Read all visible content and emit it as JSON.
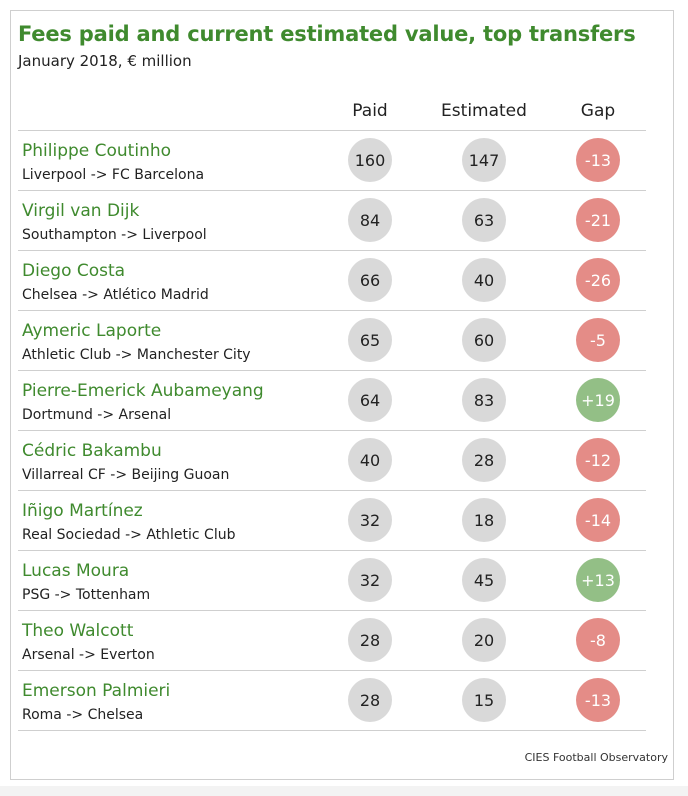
{
  "title": "Fees paid and current estimated value, top transfers",
  "subtitle": "January 2018, € million",
  "source": "CIES Football Observatory",
  "colors": {
    "title": "#3f8a2e",
    "neutral_bubble": "#d9d9d9",
    "negative_gap": "#e48c87",
    "positive_gap": "#93bf86"
  },
  "chart_data": {
    "type": "table",
    "title": "Fees paid and current estimated value, top transfers",
    "subtitle": "January 2018, € million",
    "columns": [
      "Paid",
      "Estimated",
      "Gap"
    ],
    "rows": [
      {
        "player": "Philippe Coutinho",
        "route": "Liverpool -> FC Barcelona",
        "paid": 160,
        "estimated": 147,
        "gap": "-13"
      },
      {
        "player": "Virgil van Dijk",
        "route": "Southampton -> Liverpool",
        "paid": 84,
        "estimated": 63,
        "gap": "-21"
      },
      {
        "player": "Diego Costa",
        "route": "Chelsea -> Atlético Madrid",
        "paid": 66,
        "estimated": 40,
        "gap": "-26"
      },
      {
        "player": "Aymeric Laporte",
        "route": "Athletic Club -> Manchester City",
        "paid": 65,
        "estimated": 60,
        "gap": "-5"
      },
      {
        "player": "Pierre-Emerick Aubameyang",
        "route": "Dortmund -> Arsenal",
        "paid": 64,
        "estimated": 83,
        "gap": "+19"
      },
      {
        "player": "Cédric Bakambu",
        "route": "Villarreal CF -> Beijing Guoan",
        "paid": 40,
        "estimated": 28,
        "gap": "-12"
      },
      {
        "player": "Iñigo Martínez",
        "route": "Real Sociedad -> Athletic Club",
        "paid": 32,
        "estimated": 18,
        "gap": "-14"
      },
      {
        "player": "Lucas Moura",
        "route": "PSG -> Tottenham",
        "paid": 32,
        "estimated": 45,
        "gap": "+13"
      },
      {
        "player": "Theo Walcott",
        "route": "Arsenal -> Everton",
        "paid": 28,
        "estimated": 20,
        "gap": "-8"
      },
      {
        "player": "Emerson Palmieri",
        "route": "Roma -> Chelsea",
        "paid": 28,
        "estimated": 15,
        "gap": "-13"
      }
    ]
  }
}
